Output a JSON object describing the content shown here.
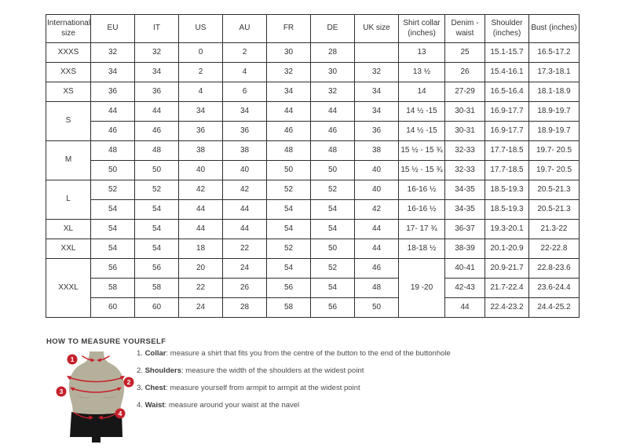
{
  "colors": {
    "accent_red": "#c5212b",
    "table_border": "#2f2f2f",
    "text": "#333333",
    "mannequin_body": "#b5b09b",
    "mannequin_shorts": "#161616"
  },
  "size_table": {
    "columns": [
      "International size",
      "EU",
      "IT",
      "US",
      "AU",
      "FR",
      "DE",
      "UK size",
      "Shirt collar (inches)",
      "Denim - waist",
      "Shoulder (inches)",
      "Bust (inches)"
    ],
    "column_keys": [
      "eu",
      "it",
      "us",
      "au",
      "fr",
      "de",
      "uk-size",
      "shirt-collar",
      "denim-waist",
      "shoulder",
      "bust"
    ],
    "groups": [
      {
        "label": "XXXS",
        "rows": [
          [
            "32",
            "32",
            "0",
            "2",
            "30",
            "28",
            "",
            "13",
            "25",
            "15.1-15.7",
            "16.5-17.2"
          ]
        ]
      },
      {
        "label": "XXS",
        "rows": [
          [
            "34",
            "34",
            "2",
            "4",
            "32",
            "30",
            "32",
            "13 ½",
            "26",
            "15.4-16.1",
            "17.3-18.1"
          ]
        ]
      },
      {
        "label": "XS",
        "rows": [
          [
            "36",
            "36",
            "4",
            "6",
            "34",
            "32",
            "34",
            "14",
            "27-29",
            "16.5-16.4",
            "18.1-18.9"
          ]
        ]
      },
      {
        "label": "S",
        "rows": [
          [
            "44",
            "44",
            "34",
            "34",
            "44",
            "44",
            "34",
            "14 ½ -15",
            "30-31",
            "16.9-17.7",
            "18.9-19.7"
          ],
          [
            "46",
            "46",
            "36",
            "36",
            "46",
            "46",
            "36",
            "14 ½ -15",
            "30-31",
            "16.9-17.7",
            "18.9-19.7"
          ]
        ]
      },
      {
        "label": "M",
        "rows": [
          [
            "48",
            "48",
            "38",
            "38",
            "48",
            "48",
            "38",
            "15 ½ - 15 ¾",
            "32-33",
            "17.7-18.5",
            "19.7- 20.5"
          ],
          [
            "50",
            "50",
            "40",
            "40",
            "50",
            "50",
            "40",
            "15 ½ - 15 ¾",
            "32-33",
            "17.7-18.5",
            "19.7- 20.5"
          ]
        ]
      },
      {
        "label": "L",
        "rows": [
          [
            "52",
            "52",
            "42",
            "42",
            "52",
            "52",
            "40",
            "16-16 ½",
            "34-35",
            "18.5-19.3",
            "20.5-21.3"
          ],
          [
            "54",
            "54",
            "44",
            "44",
            "54",
            "54",
            "42",
            "16-16 ½",
            "34-35",
            "18.5-19.3",
            "20.5-21.3"
          ]
        ]
      },
      {
        "label": "XL",
        "rows": [
          [
            "54",
            "54",
            "44",
            "44",
            "54",
            "54",
            "44",
            "17- 17 ¾",
            "36-37",
            "19.3-20.1",
            "21.3-22"
          ]
        ]
      },
      {
        "label": "XXL",
        "rows": [
          [
            "54",
            "54",
            "18",
            "22",
            "52",
            "50",
            "44",
            "18-18 ½",
            "38-39",
            "20.1-20.9",
            "22-22.8"
          ]
        ]
      },
      {
        "label": "XXXL",
        "collar_merged": "19 -20",
        "rows": [
          [
            "56",
            "56",
            "20",
            "24",
            "54",
            "52",
            "46",
            "40-41",
            "20.9-21.7",
            "22.8-23.6"
          ],
          [
            "58",
            "58",
            "22",
            "26",
            "56",
            "54",
            "48",
            "42-43",
            "21.7-22.4",
            "23.6-24.4"
          ],
          [
            "60",
            "60",
            "24",
            "28",
            "58",
            "56",
            "50",
            "44",
            "22.4-23.2",
            "24.4-25.2"
          ]
        ]
      }
    ]
  },
  "measure_guide": {
    "title": "HOW TO MEASURE YOURSELF",
    "items": [
      {
        "num": "1.",
        "term": "Collar",
        "desc": ": measure a shirt that fits you from the centre of the button to the end of the buttonhole"
      },
      {
        "num": "2.",
        "term": "Shoulders",
        "desc": ": measure the width of the shoulders at the widest point"
      },
      {
        "num": "3.",
        "term": "Chest",
        "desc": ": measure yourself from armpit to armpit at the widest point"
      },
      {
        "num": "4.",
        "term": "Waist",
        "desc": ": measure around your waist at the navel"
      }
    ],
    "figure_badges": [
      "1",
      "2",
      "3",
      "4"
    ]
  }
}
